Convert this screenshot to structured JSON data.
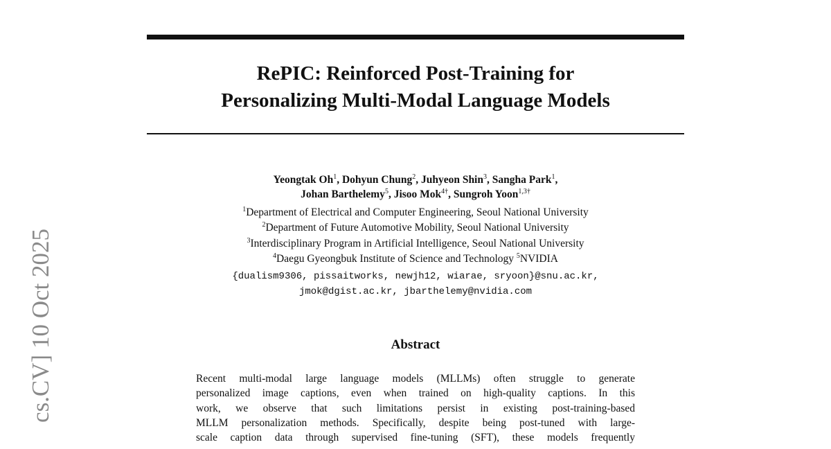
{
  "side_stamp": "cs.CV]  10 Oct 2025",
  "title": [
    "RePIC: Reinforced Post-Training for",
    "Personalizing Multi-Modal Language Models"
  ],
  "authors": [
    [
      {
        "name": "Yeongtak Oh",
        "sup": "1",
        "sep": ", "
      },
      {
        "name": "Dohyun Chung",
        "sup": "2",
        "sep": ", "
      },
      {
        "name": "Juhyeon Shin",
        "sup": "3",
        "sep": ", "
      },
      {
        "name": "Sangha Park",
        "sup": "1",
        "sep": ","
      }
    ],
    [
      {
        "name": "Johan Barthelemy",
        "sup": "5",
        "sep": ", "
      },
      {
        "name": "Jisoo Mok",
        "sup": "4†",
        "sep": ", "
      },
      {
        "name": "Sungroh Yoon",
        "sup": "1,3†"
      }
    ]
  ],
  "affiliations": [
    [
      {
        "sup": "1",
        "text": "Department of Electrical and Computer Engineering, Seoul National University"
      }
    ],
    [
      {
        "sup": "2",
        "text": "Department of Future Automotive Mobility, Seoul National University"
      }
    ],
    [
      {
        "sup": "3",
        "text": "Interdisciplinary Program in Artificial Intelligence, Seoul National University"
      }
    ],
    [
      {
        "sup": "4",
        "text": "Daegu Gyeongbuk Institute of Science and Technology "
      },
      {
        "sup": "5",
        "text": "NVIDIA"
      }
    ]
  ],
  "emails": [
    "{dualism9306, pissaitworks, newjh12, wiarae, sryoon}@snu.ac.kr,",
    "jmok@dgist.ac.kr, jbarthelemy@nvidia.com"
  ],
  "abstract": {
    "heading": "Abstract",
    "lines": [
      "Recent multi-modal large language models (MLLMs) often struggle to generate",
      "personalized image captions, even when trained on high-quality captions. In this",
      "work, we observe that such limitations persist in existing post-training-based",
      "MLLM personalization methods. Specifically, despite being post-tuned with large-",
      "scale caption data through supervised fine-tuning (SFT), these models frequently"
    ]
  }
}
